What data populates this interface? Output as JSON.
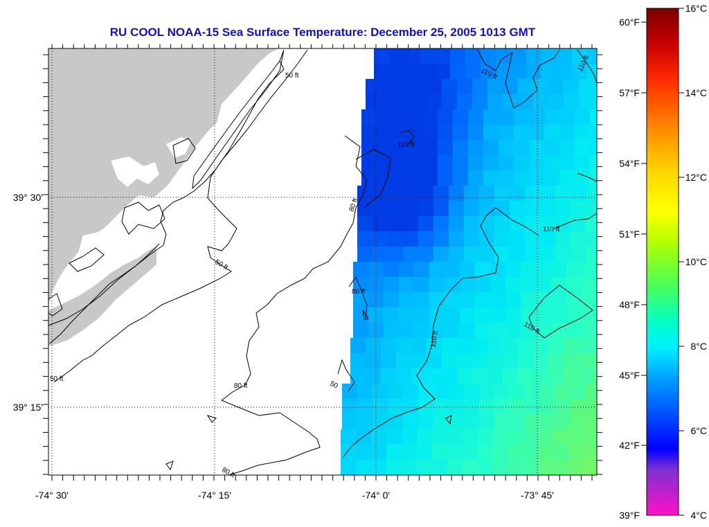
{
  "title": "RU COOL  NOAA-15  Sea Surface Temperature:  December 25, 2005 1013 GMT",
  "axes": {
    "lon_labels": [
      "-74° 30'",
      "-74° 15'",
      "-74° 0'",
      "-73° 45'"
    ],
    "lat_labels": [
      "39° 30'",
      "39° 15'"
    ]
  },
  "colorbar": {
    "fahrenheit_labels": [
      "60°F",
      "57°F",
      "54°F",
      "51°F",
      "48°F",
      "45°F",
      "42°F",
      "39°F"
    ],
    "celsius_labels": [
      "16°C",
      "14°C",
      "12°C",
      "10°C",
      "8°C",
      "6°C",
      "4°C"
    ]
  },
  "contours": {
    "labels": [
      "50 ft",
      "50 ft",
      "50 ft",
      "80 ft",
      "80 ft",
      "80 ft",
      "80 ft",
      "110 ft",
      "110 ft",
      "110 ft",
      "110 ft",
      "110 ft",
      "110 ft",
      "50"
    ]
  },
  "colors": {
    "title": "#1010c0",
    "land": "#c8c8c8",
    "nodata": "#ffffff"
  }
}
